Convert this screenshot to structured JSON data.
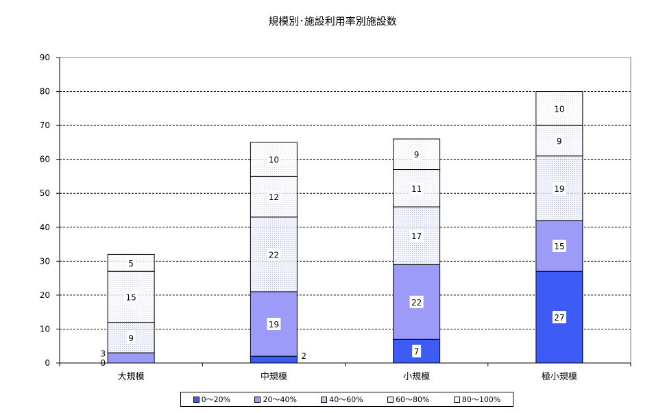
{
  "chart_data": {
    "type": "bar",
    "stacked": true,
    "title": "規模別･施設利用率別施設数",
    "categories": [
      "大規模",
      "中規模",
      "小規模",
      "極小規模"
    ],
    "ylim": [
      0,
      90
    ],
    "yticks": [
      0,
      10,
      20,
      30,
      40,
      50,
      60,
      70,
      80,
      90
    ],
    "grid": true,
    "legend_position": "bottom",
    "series": [
      {
        "name": "0～20%",
        "values": [
          0,
          2,
          7,
          27
        ],
        "color": "#3a5cff"
      },
      {
        "name": "20～40%",
        "values": [
          3,
          19,
          22,
          15
        ],
        "color": "#9999ff"
      },
      {
        "name": "40～60%",
        "values": [
          9,
          22,
          17,
          19
        ],
        "color": "#d4d4f4"
      },
      {
        "name": "60～80%",
        "values": [
          15,
          12,
          11,
          9
        ],
        "color": "#eeeefa"
      },
      {
        "name": "80～100%",
        "values": [
          5,
          10,
          9,
          10
        ],
        "color": "#f8f8ff"
      }
    ]
  }
}
